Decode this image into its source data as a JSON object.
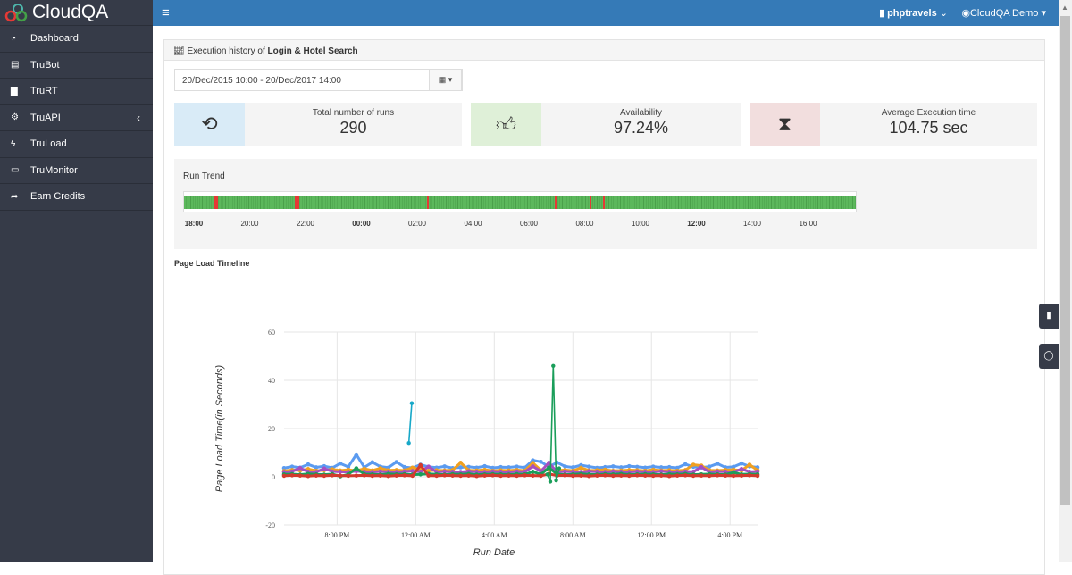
{
  "brand": "CloudQA",
  "sidebar": {
    "items": [
      {
        "label": "Dashboard",
        "icon": "dashboard-icon",
        "glyph": "◔"
      },
      {
        "label": "TruBot",
        "icon": "card-icon",
        "glyph": "▤"
      },
      {
        "label": "TruRT",
        "icon": "briefcase-icon",
        "glyph": "▇"
      },
      {
        "label": "TruAPI",
        "icon": "cogs-icon",
        "glyph": "⚙"
      },
      {
        "label": "TruLoad",
        "icon": "bolt-icon",
        "glyph": "ϟ"
      },
      {
        "label": "TruMonitor",
        "icon": "monitor-icon",
        "glyph": "▭"
      },
      {
        "label": "Earn Credits",
        "icon": "share-icon",
        "glyph": "➦"
      }
    ]
  },
  "topbar": {
    "project": "phptravels",
    "user": "CloudQA Demo"
  },
  "panel": {
    "title_prefix": "Execution history of ",
    "title_bold": "Login & Hotel Search"
  },
  "date_range": "20/Dec/2015 10:00 - 20/Dec/2017 14:00",
  "stats": [
    {
      "label": "Total number of runs",
      "value": "290",
      "color": "#d9ebf7"
    },
    {
      "label": "Availability",
      "value": "97.24%",
      "color": "#dff0d8"
    },
    {
      "label": "Average Execution time",
      "value": "104.75 sec",
      "color": "#f2dede"
    }
  ],
  "run_trend": {
    "title": "Run Trend",
    "total_runs": 290,
    "failed_runs": [
      13,
      14,
      48,
      49,
      105,
      160,
      175,
      181
    ],
    "ticks": [
      {
        "t": "18:00",
        "b": true
      },
      {
        "t": "20:00"
      },
      {
        "t": "22:00"
      },
      {
        "t": "00:00",
        "b": true
      },
      {
        "t": "02:00"
      },
      {
        "t": "04:00"
      },
      {
        "t": "06:00"
      },
      {
        "t": "08:00"
      },
      {
        "t": "10:00"
      },
      {
        "t": "12:00",
        "b": true
      },
      {
        "t": "14:00"
      },
      {
        "t": "16:00"
      }
    ]
  },
  "chart_data": {
    "type": "line",
    "title": "Page Load Timeline",
    "xlabel": "Run Date",
    "ylabel": "Page Load Time(in Seconds)",
    "ylim": [
      -20,
      60
    ],
    "yticks": [
      -20,
      0,
      20,
      40,
      60
    ],
    "xlim_hours": [
      17.3,
      41.4
    ],
    "xticks": [
      {
        "h": 20,
        "label": "8:00 PM"
      },
      {
        "h": 24,
        "label": "12:00 AM"
      },
      {
        "h": 28,
        "label": "4:00 AM"
      },
      {
        "h": 32,
        "label": "8:00 AM"
      },
      {
        "h": 36,
        "label": "12:00 PM"
      },
      {
        "h": 40,
        "label": "4:00 PM"
      }
    ],
    "series": [
      {
        "name": "s1",
        "color": "#5b9bf0",
        "values": [
          3.6,
          4.2,
          3.8,
          5.1,
          3.9,
          4.4,
          3.7,
          5.5,
          4.1,
          9.2,
          3.9,
          6.0,
          4.2,
          3.8,
          6.1,
          4.0,
          3.7,
          5.0,
          4.1,
          3.8,
          4.3,
          3.6,
          3.9,
          4.1,
          3.8,
          4.4,
          3.7,
          4.0,
          3.9,
          4.2,
          3.8,
          6.8,
          6.2,
          4.1,
          5.9,
          4.3,
          3.9,
          4.8,
          4.2,
          3.7,
          4.0,
          4.3,
          3.9,
          4.4,
          4.1,
          3.8,
          4.2,
          3.9,
          4.0,
          3.7,
          5.2,
          4.1,
          3.8,
          4.2,
          5.4,
          3.9,
          4.1,
          5.5,
          4.3,
          3.9
        ]
      },
      {
        "name": "s2",
        "color": "#f0a020",
        "values": [
          2.4,
          2.8,
          2.6,
          3.2,
          2.5,
          2.7,
          3.1,
          2.6,
          2.9,
          2.5,
          3.3,
          2.6,
          3.5,
          2.7,
          2.8,
          2.6,
          3.8,
          2.9,
          2.5,
          2.7,
          2.6,
          2.8,
          5.8,
          2.7,
          2.6,
          2.9,
          2.5,
          2.7,
          2.6,
          2.8,
          2.5,
          5.7,
          2.7,
          2.9,
          2.6,
          2.8,
          2.5,
          3.7,
          2.6,
          2.7,
          2.9,
          2.5,
          2.6,
          2.8,
          2.7,
          2.5,
          2.9,
          2.6,
          2.7,
          2.5,
          2.8,
          5.0,
          4.6,
          2.7,
          2.6,
          2.8,
          2.9,
          2.6,
          5.0,
          2.7
        ]
      },
      {
        "name": "s3",
        "color": "#a64fc0",
        "values": [
          2.0,
          2.2,
          3.6,
          2.1,
          2.0,
          3.4,
          2.2,
          2.1,
          2.0,
          2.3,
          2.1,
          2.0,
          2.2,
          2.1,
          2.0,
          2.2,
          2.4,
          2.1,
          4.2,
          2.0,
          2.2,
          2.1,
          2.0,
          2.3,
          2.1,
          2.0,
          2.2,
          2.1,
          2.0,
          2.2,
          2.1,
          4.3,
          2.3,
          5.8,
          2.0,
          2.2,
          2.1,
          2.0,
          2.3,
          2.1,
          2.0,
          2.2,
          2.1,
          2.0,
          2.2,
          2.1,
          2.0,
          2.3,
          2.1,
          2.0,
          2.2,
          2.1,
          4.0,
          2.0,
          2.2,
          2.1,
          2.0,
          3.2,
          2.1,
          2.2
        ]
      },
      {
        "name": "s4",
        "color": "#1a9e5a",
        "values": [
          1.0,
          1.1,
          0.9,
          1.2,
          1.0,
          0.9,
          1.1,
          0.2,
          1.0,
          3.5,
          1.1,
          1.0,
          0.9,
          1.2,
          1.0,
          1.1,
          0.9,
          1.0,
          1.2,
          1.0,
          0.9,
          1.1,
          1.0,
          1.2,
          0.9,
          1.0,
          1.1,
          1.0,
          0.9,
          1.1,
          1.0,
          2.1,
          1.0,
          3.8,
          1.1,
          0.9,
          1.0,
          1.2,
          1.0,
          0.9,
          1.1,
          1.0,
          1.2,
          0.9,
          1.0,
          1.1,
          1.0,
          0.9,
          1.1,
          1.0,
          1.2,
          0.9,
          1.0,
          1.1,
          1.0,
          0.9,
          1.8,
          1.0,
          1.1,
          1.0
        ]
      },
      {
        "name": "s5",
        "color": "#d33a2c",
        "values": [
          0.4,
          0.6,
          0.5,
          0.3,
          0.5,
          0.4,
          0.6,
          0.5,
          0.4,
          0.5,
          0.6,
          0.4,
          0.5,
          0.3,
          0.5,
          0.6,
          0.4,
          4.8,
          0.5,
          0.4,
          0.6,
          0.5,
          0.4,
          0.5,
          0.3,
          0.5,
          0.6,
          0.4,
          0.5,
          0.4,
          0.6,
          0.5,
          0.4,
          1.2,
          0.5,
          0.6,
          0.4,
          0.5,
          0.3,
          0.5,
          0.6,
          0.4,
          0.5,
          0.4,
          0.6,
          0.5,
          0.4,
          0.5,
          0.3,
          0.5,
          0.6,
          0.4,
          0.5,
          0.4,
          0.6,
          0.5,
          0.4,
          0.5,
          0.6,
          0.4
        ]
      }
    ],
    "spikes": [
      {
        "name": "cyan-spike",
        "color": "#17a8c8",
        "points": [
          [
            23.65,
            14
          ],
          [
            23.8,
            30.5
          ]
        ]
      },
      {
        "name": "green-spike",
        "color": "#1a9e5a",
        "points": [
          [
            30.7,
            1
          ],
          [
            30.85,
            -2
          ],
          [
            31.0,
            46
          ],
          [
            31.15,
            -1.5
          ],
          [
            31.3,
            3.5
          ]
        ]
      }
    ]
  }
}
